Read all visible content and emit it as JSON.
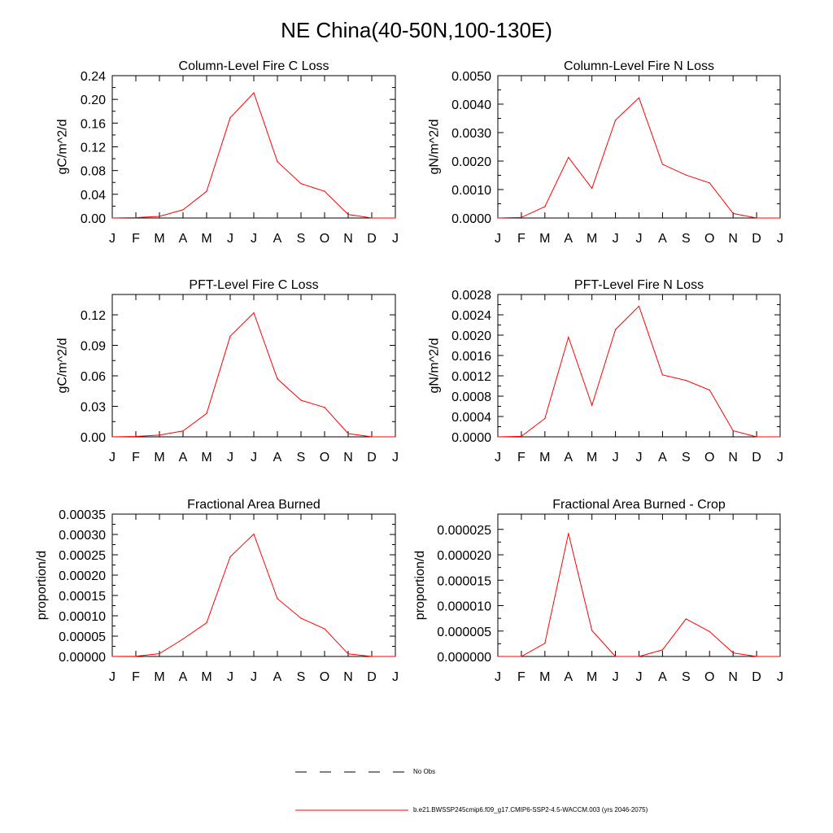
{
  "figure": {
    "title": "NE China(40-50N,100-130E)"
  },
  "months": [
    "J",
    "F",
    "M",
    "A",
    "M",
    "J",
    "J",
    "A",
    "S",
    "O",
    "N",
    "D",
    "J"
  ],
  "legend": [
    {
      "label": "No Obs",
      "style": "dashed",
      "color": "#000000"
    },
    {
      "label": "b.e21.BWSSP245cmip6.f09_g17.CMIP6-SSP2-4.5-WACCM.003 (yrs 2046-2075)",
      "style": "solid",
      "color": "#ff0000"
    }
  ],
  "line_color": "#ff0000",
  "chart_data": [
    {
      "type": "line",
      "title": "Column-Level Fire C Loss",
      "ylabel": "gC/m^2/d",
      "ylim": [
        0,
        0.24
      ],
      "yticks": [
        "0.00",
        "0.04",
        "0.08",
        "0.12",
        "0.16",
        "0.20",
        "0.24"
      ],
      "x": [
        "J",
        "F",
        "M",
        "A",
        "M",
        "J",
        "J",
        "A",
        "S",
        "O",
        "N",
        "D",
        "J"
      ],
      "values": [
        0.0,
        0.0007,
        0.0028,
        0.0138,
        0.045,
        0.169,
        0.211,
        0.095,
        0.058,
        0.045,
        0.006,
        0.0,
        0.0
      ]
    },
    {
      "type": "line",
      "title": "Column-Level Fire N Loss",
      "ylabel": "gN/m^2/d",
      "ylim": [
        0,
        0.005
      ],
      "yticks": [
        "0.0000",
        "0.0010",
        "0.0020",
        "0.0030",
        "0.0040",
        "0.0050"
      ],
      "x": [
        "J",
        "F",
        "M",
        "A",
        "M",
        "J",
        "J",
        "A",
        "S",
        "O",
        "N",
        "D",
        "J"
      ],
      "values": [
        0.0,
        2e-05,
        0.0004,
        0.00213,
        0.00104,
        0.00344,
        0.00422,
        0.00189,
        0.00151,
        0.00123,
        0.00016,
        0.0,
        0.0
      ]
    },
    {
      "type": "line",
      "title": "PFT-Level Fire C Loss",
      "ylabel": "gC/m^2/d",
      "ylim": [
        0,
        0.14
      ],
      "yticks": [
        "0.00",
        "0.03",
        "0.06",
        "0.09",
        "0.12"
      ],
      "x": [
        "J",
        "F",
        "M",
        "A",
        "M",
        "J",
        "J",
        "A",
        "S",
        "O",
        "N",
        "D",
        "J"
      ],
      "values": [
        0.0,
        0.0004,
        0.0017,
        0.0058,
        0.023,
        0.099,
        0.122,
        0.057,
        0.036,
        0.029,
        0.0032,
        0.0,
        0.0
      ]
    },
    {
      "type": "line",
      "title": "PFT-Level Fire N Loss",
      "ylabel": "gN/m^2/d",
      "ylim": [
        0,
        0.0028
      ],
      "yticks": [
        "0.0000",
        "0.0004",
        "0.0008",
        "0.0012",
        "0.0016",
        "0.0020",
        "0.0024",
        "0.0028"
      ],
      "x": [
        "J",
        "F",
        "M",
        "A",
        "M",
        "J",
        "J",
        "A",
        "S",
        "O",
        "N",
        "D",
        "J"
      ],
      "values": [
        0.0,
        1e-05,
        0.00036,
        0.00196,
        0.00062,
        0.00211,
        0.00257,
        0.00122,
        0.00111,
        0.00092,
        0.00012,
        0.0,
        0.0
      ]
    },
    {
      "type": "line",
      "title": "Fractional Area Burned",
      "ylabel": "proportion/d",
      "ylim": [
        0,
        0.00035
      ],
      "yticks": [
        "0.00000",
        "0.00005",
        "0.00010",
        "0.00015",
        "0.00020",
        "0.00025",
        "0.00030",
        "0.00035"
      ],
      "x": [
        "J",
        "F",
        "M",
        "A",
        "M",
        "J",
        "J",
        "A",
        "S",
        "O",
        "N",
        "D",
        "J"
      ],
      "values": [
        0.0,
        5e-07,
        7e-06,
        4.3e-05,
        8.3e-05,
        0.000245,
        0.000301,
        0.000142,
        9.4e-05,
        6.8e-05,
        6.5e-06,
        0.0,
        0.0
      ]
    },
    {
      "type": "line",
      "title": "Fractional Area Burned - Crop",
      "ylabel": "proportion/d",
      "ylim": [
        0,
        2.8e-05
      ],
      "yticks": [
        "0.000000",
        "0.000005",
        "0.000010",
        "0.000015",
        "0.000020",
        "0.000025"
      ],
      "x": [
        "J",
        "F",
        "M",
        "A",
        "M",
        "J",
        "J",
        "A",
        "S",
        "O",
        "N",
        "D",
        "J"
      ],
      "values": [
        0.0,
        0.0,
        2.6e-06,
        2.42e-05,
        5.1e-06,
        0.0,
        0.0,
        1.3e-06,
        7.4e-06,
        4.9e-06,
        7e-07,
        0.0,
        0.0
      ]
    }
  ]
}
